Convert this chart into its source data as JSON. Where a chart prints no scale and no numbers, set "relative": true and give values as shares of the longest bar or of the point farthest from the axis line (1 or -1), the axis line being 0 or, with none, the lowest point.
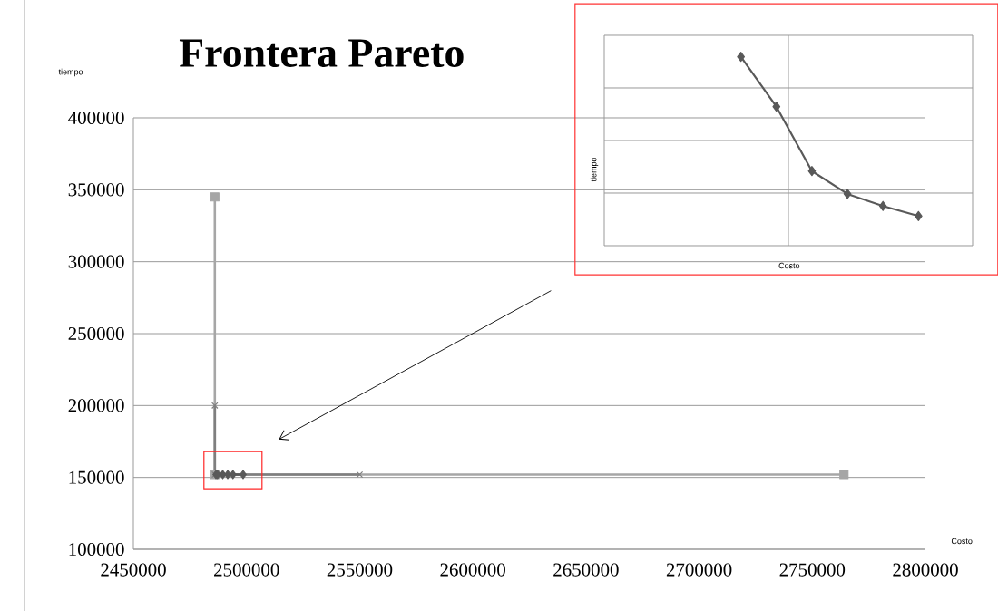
{
  "chart_data": [
    {
      "type": "line",
      "title": "Frontera Pareto",
      "xlabel": "Costo",
      "ylabel": "tiempo",
      "xlim": [
        2450000,
        2800000
      ],
      "xticks": [
        2450000,
        2500000,
        2550000,
        2600000,
        2650000,
        2700000,
        2750000,
        2800000
      ],
      "ylim": [
        100000,
        400000
      ],
      "yticks": [
        100000,
        150000,
        200000,
        250000,
        300000,
        350000,
        400000
      ],
      "grid": "y",
      "series": [
        {
          "color": "#a6a6a6",
          "marker": "square",
          "x": [
            2486000,
            2486000,
            2764000
          ],
          "values": [
            345000,
            152000,
            152000
          ]
        },
        {
          "color": "#7f7f7f",
          "marker": "cross",
          "x": [
            2486000,
            2486000,
            2550000
          ],
          "values": [
            200000,
            152000,
            152000
          ]
        },
        {
          "color": "#595959",
          "marker": "diamond",
          "x": [
            2486500,
            2487200,
            2489500,
            2491700,
            2494000,
            2498500
          ],
          "values": [
            152000,
            152000,
            152000,
            152000,
            152000,
            152000
          ]
        }
      ]
    },
    {
      "type": "line",
      "relative": true,
      "xlabel": "Costo",
      "ylabel": "tiempo",
      "grid": true,
      "marker": "diamond",
      "categories": [
        null,
        null,
        null,
        null,
        null,
        null
      ],
      "series": [
        {
          "color": "#595959",
          "values": [
            1,
            0.736,
            0.395,
            0.274,
            0.21,
            0.157
          ]
        }
      ]
    }
  ]
}
